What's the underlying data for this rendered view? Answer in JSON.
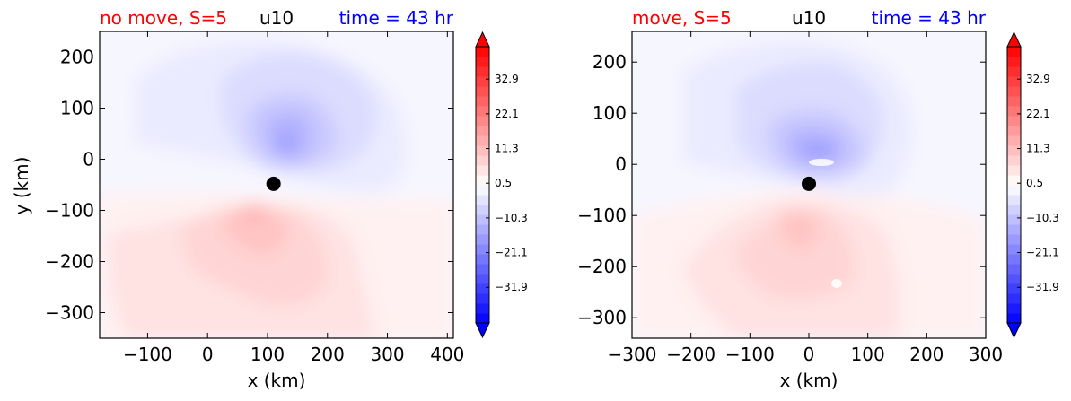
{
  "chart_data": [
    {
      "type": "heatmap",
      "title_left": "no move, S=5",
      "title_center": "u10",
      "title_right": "time = 43 hr",
      "xlabel": "x (km)",
      "ylabel": "y (km)",
      "xlim": [
        -180,
        410
      ],
      "ylim": [
        -350,
        250
      ],
      "xticks": [
        -100,
        0,
        100,
        200,
        300,
        400
      ],
      "xtick_labels": [
        "−100",
        "0",
        "100",
        "200",
        "300",
        "400"
      ],
      "yticks": [
        200,
        100,
        0,
        -100,
        -200,
        -300
      ],
      "ytick_labels": [
        "200",
        "100",
        "0",
        "−100",
        "−200",
        "−300"
      ],
      "center_marker": {
        "x": 110,
        "y": -48
      },
      "colorbar_ticks": [
        32.9,
        22.1,
        11.3,
        0.5,
        -10.3,
        -21.1,
        -31.9
      ],
      "colorbar_labels": [
        "32.9",
        "22.1",
        "11.3",
        "0.5",
        "−10.3",
        "−21.1",
        "−31.9"
      ],
      "colorbar_range": [
        -43,
        43
      ],
      "colormap": "bwr"
    },
    {
      "type": "heatmap",
      "title_left": "move, S=5",
      "title_center": "u10",
      "title_right": "time = 43 hr",
      "xlabel": "x (km)",
      "ylabel": "",
      "xlim": [
        -300,
        300
      ],
      "ylim": [
        -340,
        260
      ],
      "xticks": [
        -300,
        -200,
        -100,
        0,
        100,
        200,
        300
      ],
      "xtick_labels": [
        "−300",
        "−200",
        "−100",
        "0",
        "100",
        "200",
        "300"
      ],
      "yticks": [
        200,
        100,
        0,
        -100,
        -200,
        -300
      ],
      "ytick_labels": [
        "200",
        "100",
        "0",
        "−100",
        "−200",
        "−300"
      ],
      "center_marker": {
        "x": 0,
        "y": -38
      },
      "colorbar_ticks": [
        32.9,
        22.1,
        11.3,
        0.5,
        -10.3,
        -21.1,
        -31.9
      ],
      "colorbar_labels": [
        "32.9",
        "22.1",
        "11.3",
        "0.5",
        "−10.3",
        "−21.1",
        "−31.9"
      ],
      "colorbar_range": [
        -43,
        43
      ],
      "colormap": "bwr"
    }
  ],
  "colors": {
    "title_left": "#ff0000",
    "title_center": "#000000",
    "title_right": "#0000ff",
    "marker": "#000000"
  }
}
